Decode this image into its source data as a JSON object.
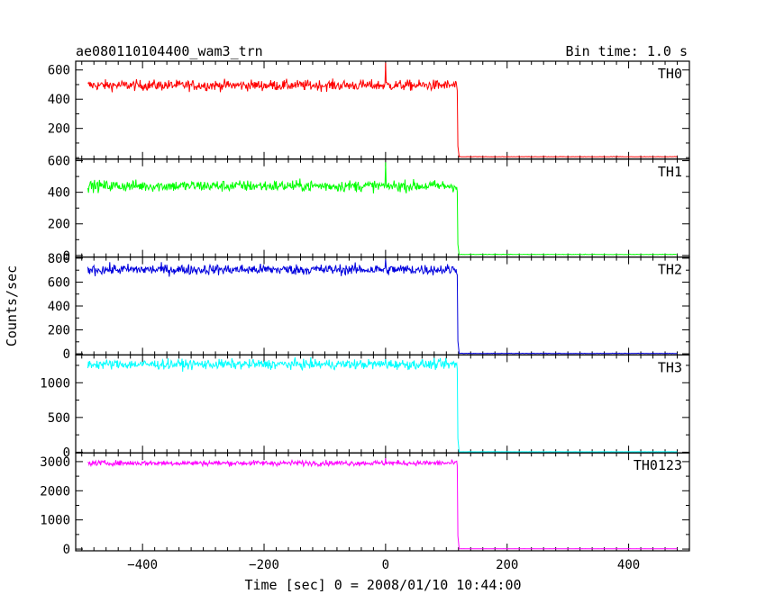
{
  "chart_data": {
    "type": "line",
    "title": "ae080110104400_wam3_trn",
    "bin_time_label": "Bin time: 1.0 s",
    "xlabel": "Time [sec] 0 = 2008/01/10 10:44:00",
    "ylabel": "Counts/sec",
    "xlim": [
      -510,
      500
    ],
    "x_ticks": [
      -400,
      -200,
      0,
      200,
      400
    ],
    "x_tick_labels": [
      "−400",
      "−200",
      "0",
      "200",
      "400"
    ],
    "drop_time": 119,
    "data_range": [
      -490,
      480
    ],
    "panels": [
      {
        "name": "TH0",
        "color": "#ff0000",
        "level_before": 495,
        "noise": 18,
        "spike_at": 0,
        "spike_value": 650,
        "level_after": 5,
        "ylim": [
          -10,
          660
        ],
        "y_ticks": [
          200,
          400,
          600
        ],
        "y_tick_labels": [
          "200",
          "400",
          "600"
        ]
      },
      {
        "name": "TH1",
        "color": "#00ff00",
        "level_before": 440,
        "noise": 18,
        "spike_at": 0,
        "spike_value": 590,
        "level_after": 5,
        "ylim": [
          -10,
          610
        ],
        "y_ticks": [
          0,
          200,
          400,
          600
        ],
        "y_tick_labels": [
          "0",
          "200",
          "400",
          "600"
        ]
      },
      {
        "name": "TH2",
        "color": "#0000dd",
        "level_before": 705,
        "noise": 22,
        "spike_at": 0,
        "spike_value": 790,
        "level_after": 2,
        "ylim": [
          -10,
          810
        ],
        "y_ticks": [
          0,
          200,
          400,
          600,
          800
        ],
        "y_tick_labels": [
          "0",
          "200",
          "400",
          "600",
          "800"
        ]
      },
      {
        "name": "TH3",
        "color": "#00ffff",
        "level_before": 1265,
        "noise": 35,
        "spike_at": 0,
        "spike_value": 1340,
        "level_after": 5,
        "ylim": [
          -10,
          1400
        ],
        "y_ticks": [
          0,
          500,
          1000
        ],
        "y_tick_labels": [
          "0",
          "500",
          "1000"
        ]
      },
      {
        "name": "TH0123",
        "color": "#ff00ff",
        "level_before": 2950,
        "noise": 45,
        "spike_at": 0,
        "spike_value": 3120,
        "level_after": 10,
        "ylim": [
          -60,
          3300
        ],
        "y_ticks": [
          0,
          1000,
          2000,
          3000
        ],
        "y_tick_labels": [
          "0",
          "1000",
          "2000",
          "3000"
        ]
      }
    ]
  }
}
